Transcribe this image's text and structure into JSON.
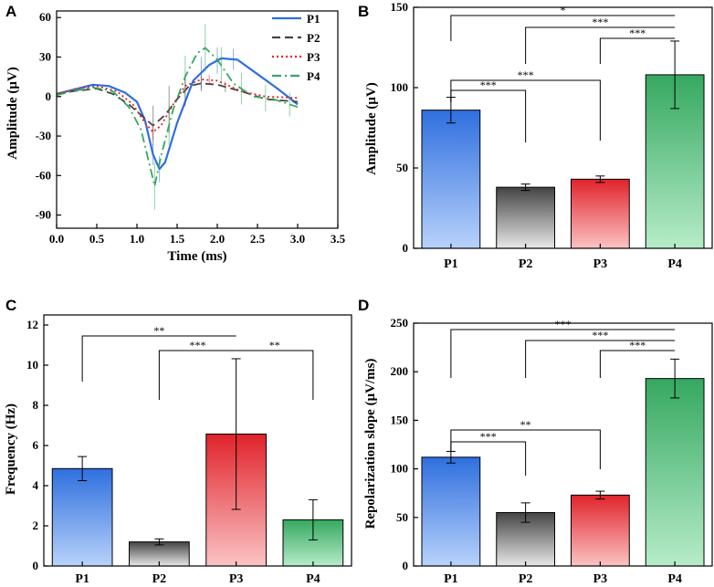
{
  "figure_title": "",
  "colors": {
    "P1": "#2f6fde",
    "P2": "#444444",
    "P3": "#e0232b",
    "P4": "#35a860",
    "P1_light": "#b8d2fb",
    "P2_light": "#e8e8e8",
    "P3_light": "#fbc3c3",
    "P4_light": "#b6ecc8",
    "axis": "#000000"
  },
  "chart_data": [
    {
      "panel": "A",
      "type": "line",
      "xlabel": "Time (ms)",
      "ylabel": "Amplitude (μV)",
      "xlim": [
        0,
        3.5
      ],
      "ylim": [
        -100,
        65
      ],
      "xticks": [
        "0.0",
        "0.5",
        "1.0",
        "1.5",
        "2.0",
        "2.5",
        "3.0",
        "3.5"
      ],
      "xtick_values": [
        0,
        0.5,
        1.0,
        1.5,
        2.0,
        2.5,
        3.0,
        3.5
      ],
      "yticks": [
        "60",
        "30",
        "0",
        "-30",
        "-60",
        "-90"
      ],
      "ytick_values": [
        60,
        30,
        0,
        -30,
        -60,
        -90
      ],
      "legend_position": "top-right",
      "series": [
        {
          "name": "P1",
          "style": "solid",
          "points": [
            [
              0,
              2
            ],
            [
              0.2,
              5
            ],
            [
              0.45,
              9
            ],
            [
              0.65,
              8
            ],
            [
              0.85,
              3
            ],
            [
              1.0,
              -4
            ],
            [
              1.1,
              -18
            ],
            [
              1.2,
              -44
            ],
            [
              1.28,
              -55
            ],
            [
              1.35,
              -50
            ],
            [
              1.5,
              -20
            ],
            [
              1.7,
              12
            ],
            [
              1.9,
              24
            ],
            [
              2.05,
              29
            ],
            [
              2.25,
              28
            ],
            [
              2.5,
              17
            ],
            [
              2.75,
              6
            ],
            [
              3.0,
              -6
            ]
          ],
          "err": [
            [
              1.2,
              8
            ],
            [
              1.28,
              10
            ],
            [
              1.8,
              12
            ],
            [
              2.0,
              10
            ],
            [
              2.2,
              8
            ]
          ]
        },
        {
          "name": "P2",
          "style": "dash",
          "points": [
            [
              0,
              2
            ],
            [
              0.2,
              4
            ],
            [
              0.5,
              6
            ],
            [
              0.7,
              2
            ],
            [
              0.9,
              -6
            ],
            [
              1.05,
              -14
            ],
            [
              1.2,
              -22
            ],
            [
              1.35,
              -14
            ],
            [
              1.5,
              -2
            ],
            [
              1.65,
              8
            ],
            [
              1.8,
              10
            ],
            [
              2.0,
              9
            ],
            [
              2.3,
              4
            ],
            [
              2.6,
              -2
            ],
            [
              3.0,
              -4
            ]
          ],
          "err": [
            [
              1.2,
              15
            ],
            [
              1.4,
              18
            ],
            [
              1.6,
              12
            ],
            [
              1.8,
              6
            ],
            [
              2.1,
              4
            ]
          ]
        },
        {
          "name": "P3",
          "style": "dot",
          "points": [
            [
              0,
              2
            ],
            [
              0.25,
              6
            ],
            [
              0.5,
              8
            ],
            [
              0.75,
              4
            ],
            [
              0.95,
              -6
            ],
            [
              1.1,
              -20
            ],
            [
              1.2,
              -27
            ],
            [
              1.3,
              -22
            ],
            [
              1.45,
              -6
            ],
            [
              1.6,
              8
            ],
            [
              1.8,
              13
            ],
            [
              2.0,
              12
            ],
            [
              2.3,
              4
            ],
            [
              2.6,
              0
            ],
            [
              3.0,
              -1
            ]
          ],
          "err": [
            [
              1.2,
              6
            ],
            [
              1.6,
              5
            ],
            [
              1.9,
              4
            ]
          ]
        },
        {
          "name": "P4",
          "style": "dashdot",
          "points": [
            [
              0,
              1
            ],
            [
              0.2,
              4
            ],
            [
              0.45,
              7
            ],
            [
              0.7,
              4
            ],
            [
              0.9,
              -8
            ],
            [
              1.05,
              -25
            ],
            [
              1.15,
              -50
            ],
            [
              1.22,
              -68
            ],
            [
              1.3,
              -45
            ],
            [
              1.45,
              -10
            ],
            [
              1.6,
              15
            ],
            [
              1.75,
              33
            ],
            [
              1.85,
              37
            ],
            [
              2.0,
              28
            ],
            [
              2.2,
              10
            ],
            [
              2.45,
              0
            ],
            [
              2.7,
              -2
            ],
            [
              3.0,
              -8
            ]
          ],
          "err": [
            [
              1.22,
              18
            ],
            [
              1.4,
              15
            ],
            [
              1.6,
              16
            ],
            [
              1.85,
              18
            ],
            [
              2.05,
              14
            ],
            [
              2.3,
              12
            ],
            [
              2.6,
              10
            ],
            [
              2.9,
              9
            ]
          ]
        }
      ]
    },
    {
      "panel": "B",
      "type": "bar",
      "categories": [
        "P1",
        "P2",
        "P3",
        "P4"
      ],
      "values": [
        86,
        38,
        43,
        108
      ],
      "errors": [
        8,
        2,
        2,
        21
      ],
      "ylabel": "Amplitude (μV)",
      "ylim": [
        0,
        150
      ],
      "yticks": [
        "0",
        "50",
        "100",
        "150"
      ],
      "ytick_values": [
        0,
        50,
        100,
        150
      ],
      "significance": [
        {
          "from": "P1",
          "to": "P4",
          "label": "*"
        },
        {
          "from": "P2",
          "to": "P4",
          "label": "***"
        },
        {
          "from": "P3",
          "to": "P4",
          "label": "***"
        },
        {
          "from": "P1",
          "to": "P3",
          "label": "***"
        },
        {
          "from": "P1",
          "to": "P2",
          "label": "***"
        }
      ]
    },
    {
      "panel": "C",
      "type": "bar",
      "categories": [
        "P1",
        "P2",
        "P3",
        "P4"
      ],
      "values": [
        4.85,
        1.2,
        6.57,
        2.3
      ],
      "errors": [
        0.6,
        0.15,
        3.75,
        1.0
      ],
      "ylabel": "Frequency (Hz)",
      "ylim": [
        0,
        12.5
      ],
      "yticks": [
        "0",
        "2",
        "4",
        "6",
        "8",
        "10",
        "12"
      ],
      "ytick_values": [
        0,
        2,
        4,
        6,
        8,
        10,
        12
      ],
      "significance": [
        {
          "from": "P1",
          "to": "P3",
          "label": "**"
        },
        {
          "from": "P2",
          "to": "P3",
          "label": "***"
        },
        {
          "from": "P3",
          "to": "P4",
          "label": "**"
        }
      ]
    },
    {
      "panel": "D",
      "type": "bar",
      "categories": [
        "P1",
        "P2",
        "P3",
        "P4"
      ],
      "values": [
        112,
        55,
        73,
        193
      ],
      "errors": [
        6,
        10,
        4,
        20
      ],
      "ylabel": "Repolarization slope (μV/ms)",
      "ylim": [
        0,
        250
      ],
      "yticks": [
        "0",
        "50",
        "100",
        "150",
        "200",
        "250"
      ],
      "ytick_values": [
        0,
        50,
        100,
        150,
        200,
        250
      ],
      "significance": [
        {
          "from": "P1",
          "to": "P4",
          "label": "***"
        },
        {
          "from": "P2",
          "to": "P4",
          "label": "***"
        },
        {
          "from": "P3",
          "to": "P4",
          "label": "***"
        },
        {
          "from": "P1",
          "to": "P2",
          "label": "***"
        },
        {
          "from": "P1",
          "to": "P3",
          "label": "**"
        }
      ]
    }
  ]
}
